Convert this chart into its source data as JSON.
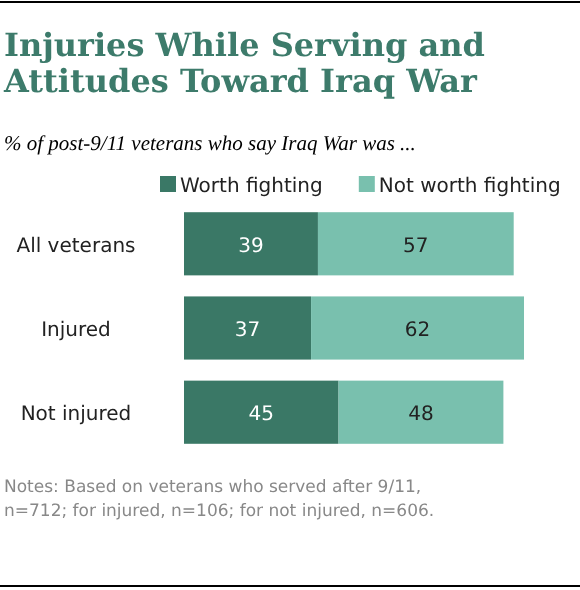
{
  "chart_data": {
    "type": "bar",
    "orientation": "horizontal",
    "stacked": true,
    "title": "Injuries While Serving and Attitudes Toward Iraq War",
    "subtitle": "% of post-9/11 veterans who say Iraq War was ...",
    "categories": [
      "All veterans",
      "Injured",
      "Not injured"
    ],
    "series": [
      {
        "name": "Worth fighting",
        "color": "#3a7866",
        "values": [
          39,
          37,
          45
        ]
      },
      {
        "name": "Not worth fighting",
        "color": "#79c0ae",
        "values": [
          57,
          62,
          48
        ]
      }
    ],
    "data_labels": true,
    "legend": "top",
    "annotations": [
      "Notes: Based on veterans who served after 9/11, n=712; for injured, n=106; for not injured, n=606."
    ]
  }
}
